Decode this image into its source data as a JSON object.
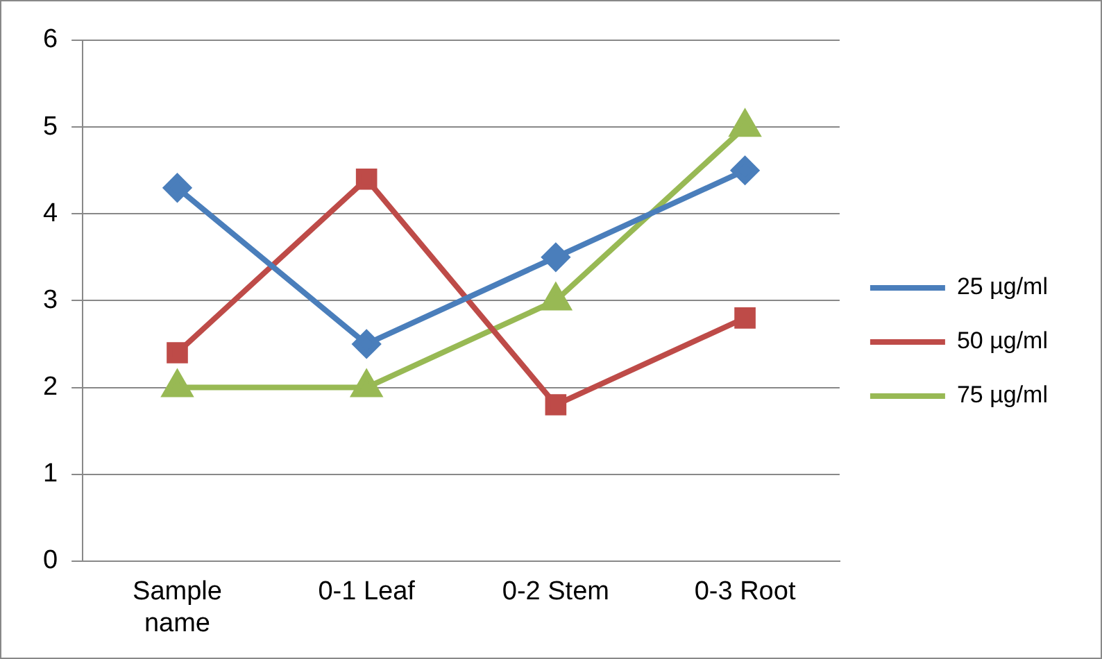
{
  "chart_data": {
    "type": "line",
    "categories": [
      "Sample name",
      "0-1 Leaf",
      "0-2 Stem",
      "0-3 Root"
    ],
    "series": [
      {
        "name": "25 µg/ml",
        "color": "#4a7ebb",
        "marker": "diamond",
        "values": [
          4.3,
          2.5,
          3.5,
          4.5
        ]
      },
      {
        "name": "50 µg/ml",
        "color": "#be4b48",
        "marker": "square",
        "values": [
          2.4,
          4.4,
          1.8,
          2.8
        ]
      },
      {
        "name": "75 µg/ml",
        "color": "#98b954",
        "marker": "triangle",
        "values": [
          2,
          2,
          3,
          5
        ]
      }
    ],
    "ylim": [
      0,
      6
    ],
    "yticks": [
      0,
      1,
      2,
      3,
      4,
      5,
      6
    ],
    "grid": "y",
    "legend": "right",
    "line_style": "solid"
  }
}
